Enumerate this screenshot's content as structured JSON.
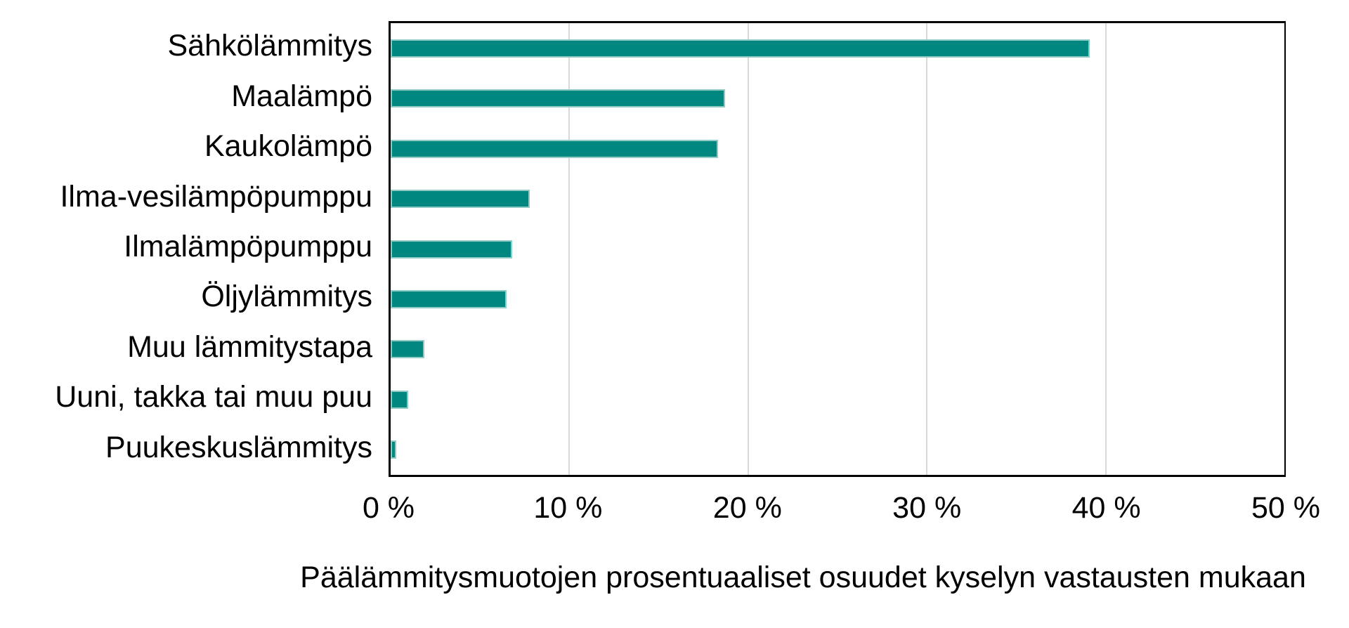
{
  "chart_data": {
    "type": "bar",
    "orientation": "horizontal",
    "title": "",
    "xlabel": "Päälämmitysmuotojen prosentuaaliset osuudet kyselyn vastausten mukaan",
    "ylabel": "",
    "unit": "%",
    "categories": [
      "Sähkölämmitys",
      "Maalämpö",
      "Kaukolämpö",
      "Ilma-vesilämpöpumppu",
      "Ilmalämpöpumppu",
      "Öljylämmitys",
      "Muu lämmitystapa",
      "Uuni, takka tai muu puu",
      "Puukeskuslämmitys"
    ],
    "values": [
      39.1,
      18.7,
      18.3,
      7.8,
      6.8,
      6.5,
      1.9,
      1.0,
      0.3
    ],
    "xlim": [
      0,
      50
    ],
    "x_tick_step": 10,
    "x_tick_labels": [
      "0 %",
      "10 %",
      "20 %",
      "30 %",
      "40 %",
      "50 %"
    ],
    "grid": "vertical-gridlines",
    "legend": "none",
    "colors": {
      "bar_fill": "#008880",
      "bar_edge": "#8fcac5",
      "gridline": "#d9d9d9",
      "axis_border": "#000000",
      "text": "#000000",
      "background": "#ffffff"
    }
  }
}
